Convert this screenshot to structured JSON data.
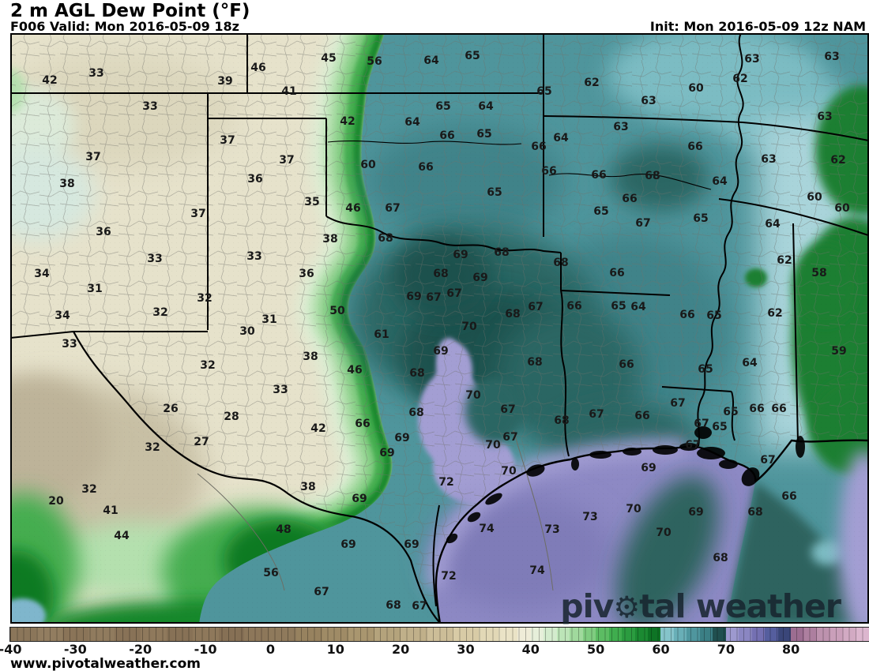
{
  "header": {
    "title": "2 m AGL Dew Point (°F)",
    "valid": "F006 Valid: Mon 2016-05-09 18z",
    "init": "Init: Mon 2016-05-09 12z NAM"
  },
  "watermark": {
    "before": "piv",
    "gear_char": "⚙",
    "after": "tal weather"
  },
  "footer": {
    "url": "www.pivotalweather.com"
  },
  "colorbar": {
    "min": -40,
    "max": 92,
    "ticks": [
      -40,
      -30,
      -20,
      -10,
      0,
      10,
      20,
      30,
      40,
      50,
      60,
      70,
      80
    ],
    "segments": [
      {
        "from": -40,
        "to": -36,
        "color": "#8b765a"
      },
      {
        "from": -36,
        "to": -32,
        "color": "#927d60"
      },
      {
        "from": -32,
        "to": -28,
        "color": "#8a7458"
      },
      {
        "from": -28,
        "to": -24,
        "color": "#907b5e"
      },
      {
        "from": -24,
        "to": -20,
        "color": "#887257"
      },
      {
        "from": -20,
        "to": -16,
        "color": "#8f795c"
      },
      {
        "from": -16,
        "to": -12,
        "color": "#877156"
      },
      {
        "from": -12,
        "to": -8,
        "color": "#8e785b"
      },
      {
        "from": -8,
        "to": -4,
        "color": "#867055"
      },
      {
        "from": -4,
        "to": 0,
        "color": "#8d775a"
      },
      {
        "from": 0,
        "to": 4,
        "color": "#8f7a5c"
      },
      {
        "from": 4,
        "to": 8,
        "color": "#97825f"
      },
      {
        "from": 8,
        "to": 12,
        "color": "#9f8b66"
      },
      {
        "from": 12,
        "to": 16,
        "color": "#a9966f"
      },
      {
        "from": 16,
        "to": 20,
        "color": "#b4a37c"
      },
      {
        "from": 20,
        "to": 24,
        "color": "#c0b08a"
      },
      {
        "from": 24,
        "to": 28,
        "color": "#ccbd98"
      },
      {
        "from": 28,
        "to": 32,
        "color": "#d8cba6"
      },
      {
        "from": 32,
        "to": 35,
        "color": "#e2d8b6"
      },
      {
        "from": 35,
        "to": 38,
        "color": "#eae3c6"
      },
      {
        "from": 38,
        "to": 40,
        "color": "#efecd8"
      },
      {
        "from": 40,
        "to": 42,
        "color": "#e6efda"
      },
      {
        "from": 42,
        "to": 44,
        "color": "#d3ebcd"
      },
      {
        "from": 44,
        "to": 46,
        "color": "#bce4b7"
      },
      {
        "from": 46,
        "to": 48,
        "color": "#a0d99d"
      },
      {
        "from": 48,
        "to": 50,
        "color": "#7fcc80"
      },
      {
        "from": 50,
        "to": 52,
        "color": "#5cbc63"
      },
      {
        "from": 52,
        "to": 54,
        "color": "#3fad4e"
      },
      {
        "from": 54,
        "to": 56,
        "color": "#2b9c40"
      },
      {
        "from": 56,
        "to": 58,
        "color": "#1b8a32"
      },
      {
        "from": 58,
        "to": 60,
        "color": "#0e7425"
      },
      {
        "from": 60,
        "to": 62,
        "color": "#85c4ca"
      },
      {
        "from": 62,
        "to": 64,
        "color": "#69afb7"
      },
      {
        "from": 64,
        "to": 66,
        "color": "#4f969e"
      },
      {
        "from": 66,
        "to": 68,
        "color": "#3b7f85"
      },
      {
        "from": 68,
        "to": 70,
        "color": "#204f4f"
      },
      {
        "from": 70,
        "to": 72,
        "color": "#9d99cf"
      },
      {
        "from": 72,
        "to": 74,
        "color": "#8a86c2"
      },
      {
        "from": 74,
        "to": 76,
        "color": "#7470b2"
      },
      {
        "from": 76,
        "to": 78,
        "color": "#555e9e"
      },
      {
        "from": 78,
        "to": 80,
        "color": "#3a4679"
      },
      {
        "from": 80,
        "to": 82,
        "color": "#9c6d91"
      },
      {
        "from": 82,
        "to": 84,
        "color": "#ad7f9f"
      },
      {
        "from": 84,
        "to": 86,
        "color": "#bd92ae"
      },
      {
        "from": 86,
        "to": 88,
        "color": "#ca9fba"
      },
      {
        "from": 88,
        "to": 90,
        "color": "#d2aac3"
      },
      {
        "from": 90,
        "to": 92,
        "color": "#dcb6ce"
      }
    ]
  },
  "map": {
    "palette": {
      "paper": "#ffffff",
      "dry_base": "#e6e2cb",
      "dry_shade": "#dcd7bd",
      "mex_shade": "#c7bfa4",
      "mex_dark": "#bdb399",
      "mint": "#dcead9",
      "mint2": "#d6e8df",
      "green_pale": "#dcefd5",
      "green_light": "#b4e0ae",
      "green_mid": "#7fcb7f",
      "green_strong": "#44ad4f",
      "green_dark": "#17872c",
      "green_deep": "#0f7a24",
      "green_ne": "#1d7f33",
      "teal_base": "#4f959c",
      "teal_mid": "#3f8389",
      "teal_dark": "#2b6663",
      "teal_deep": "#1f514d",
      "teal_light": "#7cbcc3",
      "cyan_light": "#a9d4da",
      "lavender": "#a39ed3",
      "purple": "#8d89c4",
      "purple_deep": "#7f7bb8",
      "gulf_teal": "#2e635e",
      "blue_spot": "#7fb6cc",
      "border": "#000000",
      "county": "#70706a",
      "label": "#191919",
      "watermark": "#17242e"
    },
    "labels": [
      [
        42,
        63,
        102
      ],
      [
        33,
        122,
        93
      ],
      [
        33,
        190,
        135
      ],
      [
        39,
        285,
        103
      ],
      [
        46,
        327,
        86
      ],
      [
        41,
        366,
        116
      ],
      [
        45,
        416,
        74
      ],
      [
        56,
        474,
        78
      ],
      [
        64,
        546,
        77
      ],
      [
        65,
        598,
        71
      ],
      [
        65,
        689,
        116
      ],
      [
        62,
        749,
        105
      ],
      [
        63,
        821,
        128
      ],
      [
        60,
        881,
        112
      ],
      [
        62,
        937,
        100
      ],
      [
        63,
        952,
        75
      ],
      [
        63,
        1053,
        72
      ],
      [
        63,
        1044,
        148
      ],
      [
        37,
        118,
        199
      ],
      [
        38,
        85,
        233
      ],
      [
        37,
        288,
        178
      ],
      [
        37,
        363,
        203
      ],
      [
        36,
        323,
        227
      ],
      [
        42,
        440,
        154
      ],
      [
        64,
        522,
        155
      ],
      [
        65,
        561,
        135
      ],
      [
        64,
        615,
        135
      ],
      [
        66,
        682,
        186
      ],
      [
        66,
        880,
        186
      ],
      [
        63,
        786,
        161
      ],
      [
        63,
        973,
        202
      ],
      [
        62,
        1061,
        203
      ],
      [
        60,
        466,
        209
      ],
      [
        66,
        539,
        212
      ],
      [
        66,
        566,
        172
      ],
      [
        65,
        613,
        170
      ],
      [
        64,
        710,
        175
      ],
      [
        66,
        695,
        217
      ],
      [
        65,
        626,
        244
      ],
      [
        66,
        758,
        222
      ],
      [
        68,
        826,
        223
      ],
      [
        64,
        911,
        230
      ],
      [
        66,
        797,
        252
      ],
      [
        65,
        761,
        268
      ],
      [
        67,
        814,
        283
      ],
      [
        65,
        887,
        277
      ],
      [
        64,
        978,
        284
      ],
      [
        60,
        1031,
        250
      ],
      [
        60,
        1066,
        264
      ],
      [
        35,
        395,
        256
      ],
      [
        37,
        251,
        271
      ],
      [
        46,
        447,
        264
      ],
      [
        67,
        497,
        264
      ],
      [
        36,
        131,
        294
      ],
      [
        33,
        196,
        328
      ],
      [
        33,
        322,
        325
      ],
      [
        34,
        53,
        347
      ],
      [
        31,
        120,
        366
      ],
      [
        36,
        388,
        347
      ],
      [
        38,
        418,
        303
      ],
      [
        68,
        488,
        302
      ],
      [
        69,
        583,
        323
      ],
      [
        68,
        635,
        320
      ],
      [
        68,
        710,
        333
      ],
      [
        68,
        558,
        347
      ],
      [
        69,
        608,
        352
      ],
      [
        66,
        781,
        346
      ],
      [
        58,
        1037,
        346
      ],
      [
        62,
        993,
        330
      ],
      [
        32,
        259,
        378
      ],
      [
        32,
        203,
        396
      ],
      [
        34,
        79,
        400
      ],
      [
        31,
        341,
        405
      ],
      [
        30,
        313,
        420
      ],
      [
        50,
        427,
        394
      ],
      [
        69,
        524,
        376
      ],
      [
        67,
        549,
        377
      ],
      [
        67,
        575,
        372
      ],
      [
        66,
        727,
        388
      ],
      [
        67,
        678,
        389
      ],
      [
        68,
        649,
        398
      ],
      [
        65,
        783,
        388
      ],
      [
        64,
        808,
        389
      ],
      [
        66,
        870,
        399
      ],
      [
        65,
        904,
        400
      ],
      [
        62,
        981,
        397
      ],
      [
        33,
        88,
        436
      ],
      [
        38,
        393,
        452
      ],
      [
        61,
        483,
        424
      ],
      [
        70,
        594,
        414
      ],
      [
        69,
        558,
        445
      ],
      [
        68,
        528,
        473
      ],
      [
        68,
        677,
        459
      ],
      [
        66,
        793,
        462
      ],
      [
        65,
        893,
        468
      ],
      [
        64,
        949,
        460
      ],
      [
        59,
        1062,
        445
      ],
      [
        32,
        263,
        463
      ],
      [
        46,
        449,
        469
      ],
      [
        33,
        355,
        494
      ],
      [
        26,
        216,
        518
      ],
      [
        28,
        293,
        528
      ],
      [
        70,
        599,
        501
      ],
      [
        68,
        527,
        523
      ],
      [
        67,
        643,
        519
      ],
      [
        68,
        711,
        533
      ],
      [
        67,
        858,
        511
      ],
      [
        67,
        755,
        525
      ],
      [
        66,
        813,
        527
      ],
      [
        65,
        925,
        522
      ],
      [
        67,
        888,
        537
      ],
      [
        65,
        911,
        541
      ],
      [
        66,
        958,
        518
      ],
      [
        66,
        986,
        518
      ],
      [
        27,
        255,
        560
      ],
      [
        32,
        193,
        567
      ],
      [
        42,
        403,
        543
      ],
      [
        66,
        459,
        537
      ],
      [
        69,
        509,
        555
      ],
      [
        69,
        490,
        574
      ],
      [
        67,
        646,
        554
      ],
      [
        70,
        624,
        564
      ],
      [
        70,
        644,
        597
      ],
      [
        67,
        877,
        564
      ],
      [
        67,
        972,
        583
      ],
      [
        69,
        821,
        593
      ],
      [
        72,
        565,
        611
      ],
      [
        69,
        455,
        632
      ],
      [
        38,
        390,
        617
      ],
      [
        32,
        113,
        620
      ],
      [
        20,
        71,
        635
      ],
      [
        41,
        140,
        647
      ],
      [
        44,
        154,
        679
      ],
      [
        48,
        359,
        671
      ],
      [
        74,
        616,
        670
      ],
      [
        73,
        699,
        671
      ],
      [
        73,
        747,
        655
      ],
      [
        70,
        802,
        645
      ],
      [
        69,
        881,
        649
      ],
      [
        68,
        956,
        649
      ],
      [
        66,
        999,
        629
      ],
      [
        70,
        840,
        675
      ],
      [
        74,
        680,
        723
      ],
      [
        72,
        568,
        730
      ],
      [
        69,
        441,
        690
      ],
      [
        69,
        521,
        690
      ],
      [
        56,
        343,
        726
      ],
      [
        68,
        912,
        707
      ],
      [
        67,
        407,
        750
      ],
      [
        68,
        498,
        767
      ],
      [
        67,
        531,
        768
      ]
    ]
  }
}
